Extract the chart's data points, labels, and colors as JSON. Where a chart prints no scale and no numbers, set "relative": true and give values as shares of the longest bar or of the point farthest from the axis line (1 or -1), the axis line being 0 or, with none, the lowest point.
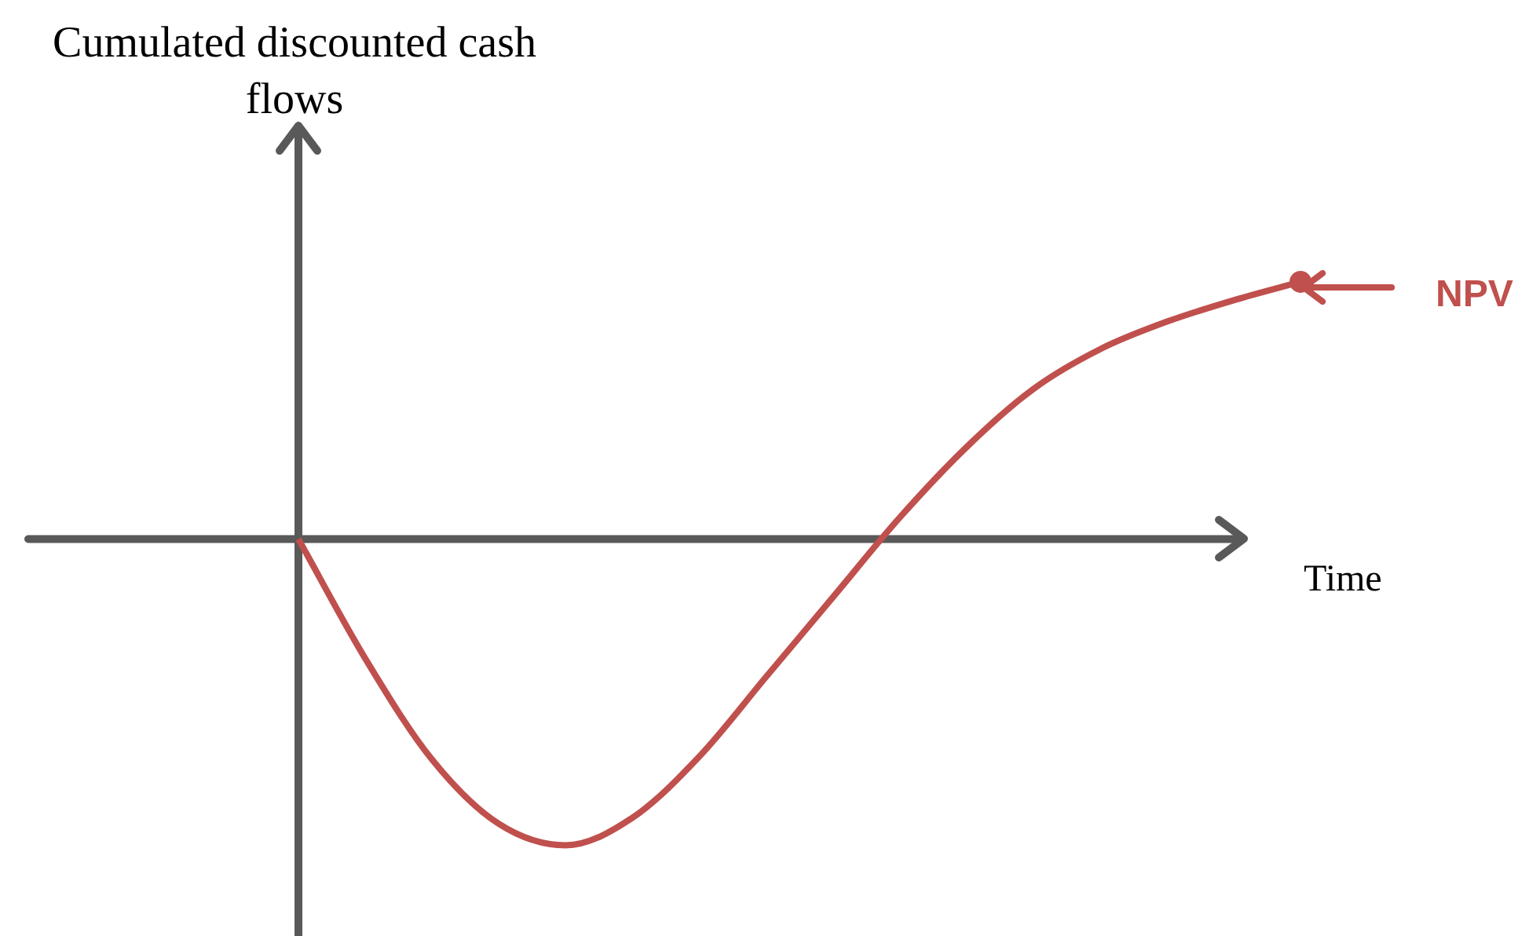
{
  "chart_data": {
    "type": "line",
    "relative": true,
    "xlabel": "Time",
    "ylabel": "Cumulated discounted cash flows",
    "annotations": [
      "NPV"
    ],
    "categories": [
      null,
      null,
      null,
      null,
      null,
      null,
      null,
      null,
      null,
      null,
      null,
      null,
      null,
      null,
      null,
      null
    ],
    "series": [
      {
        "color": "#c0504d",
        "values": [
          0,
          -0.39,
          -0.72,
          -0.93,
          -1,
          -0.91,
          -0.71,
          -0.45,
          -0.19,
          0.07,
          0.3,
          0.49,
          0.62,
          0.71,
          0.78,
          0.84
        ]
      }
    ]
  }
}
